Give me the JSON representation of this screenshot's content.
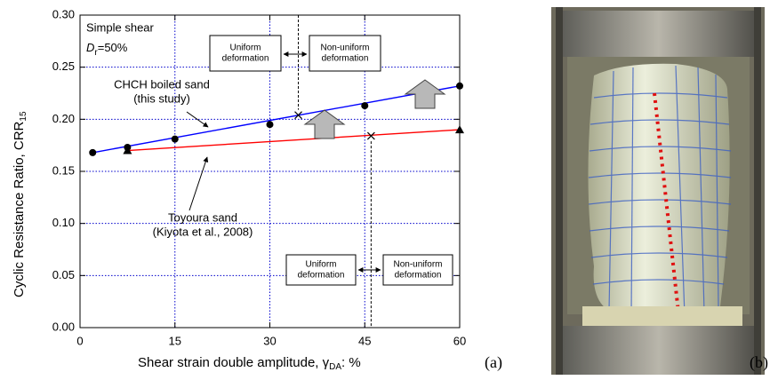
{
  "chart_data": {
    "type": "scatter",
    "xlabel": {
      "main": "Shear strain double amplitude, γ",
      "sub": "DA",
      "suffix": ": %"
    },
    "ylabel": {
      "main": "Cyclic Resistance Ratio, CRR",
      "sub": "15"
    },
    "xlim": [
      0,
      60
    ],
    "xticks": [
      0,
      15,
      30,
      45,
      60
    ],
    "ylim": [
      0,
      0.3
    ],
    "yticks": [
      {
        "value": 0,
        "label": "0.00"
      },
      {
        "value": 0.05,
        "label": "0.05"
      },
      {
        "value": 0.1,
        "label": "0.10"
      },
      {
        "value": 0.15,
        "label": "0.15"
      },
      {
        "value": 0.2,
        "label": "0.20"
      },
      {
        "value": 0.25,
        "label": "0.25"
      },
      {
        "value": 0.3,
        "label": "0.30"
      }
    ],
    "grid": true,
    "series": [
      {
        "name": "CHCH boiled sand",
        "note": "(this study)",
        "marker": "circle",
        "color": "#0000ff",
        "x": [
          2,
          7.5,
          15,
          30,
          45,
          60
        ],
        "values": [
          0.168,
          0.173,
          0.181,
          0.195,
          0.213,
          0.232
        ]
      },
      {
        "name": "Toyoura sand",
        "note": "(Kiyota et al., 2008)",
        "marker": "triangle",
        "color": "#ff0000",
        "x": [
          7.5,
          60
        ],
        "values": [
          0.17,
          0.19
        ]
      }
    ],
    "annotation": "Simple shear",
    "density": {
      "symbol": "D",
      "sub": "r",
      "text": "=50%"
    },
    "boundary_markers": {
      "x": [
        34.5,
        46
      ],
      "values": [
        0.204,
        0.184
      ]
    },
    "boxes": [
      {
        "left": [
          "Uniform",
          "deformation"
        ],
        "right": [
          "Non-uniform",
          "deformation"
        ]
      },
      {
        "left": [
          "Uniform",
          "deformation"
        ],
        "right": [
          "Non-uniform",
          "deformation"
        ]
      }
    ],
    "panel_label": "(a)"
  },
  "photo": {
    "panel_label": "(b)"
  }
}
